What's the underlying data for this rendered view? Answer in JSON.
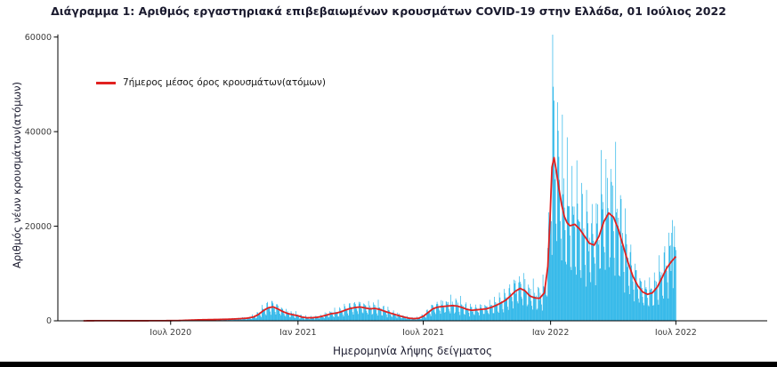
{
  "chart_data": {
    "type": "bar",
    "title": "Διάγραμμα 1: Αριθμός εργαστηριακά επιβεβαιωμένων κρουσμάτων COVID-19 στην Ελλάδα, 01 Ιούλιος 2022",
    "xlabel": "Ημερομηνία λήψης δείγματος",
    "ylabel": "Αριθμός νέων κρουσμάτων(ατόμων)",
    "legend": {
      "label": "7ήμερος μέσος όρος κρουσμάτων(ατόμων)",
      "position": "top-left",
      "marker": "line"
    },
    "bar_color": "#29b5e8",
    "line_color": "#e12120",
    "axis_color": "#000000",
    "tick_label_color": "#3c3c3c",
    "grid": "off",
    "ylim": [
      0,
      62200
    ],
    "y_ticks": [
      {
        "value": 0,
        "label": "0"
      },
      {
        "value": 20000,
        "label": "20000"
      },
      {
        "value": 40000,
        "label": "40000"
      },
      {
        "value": 60000,
        "label": "60000"
      }
    ],
    "day_zero": "2020-01-20",
    "x_domain_days": [
      0,
      1025
    ],
    "x_ticks": [
      {
        "day": 163,
        "label": "Ιουλ 2020"
      },
      {
        "day": 347,
        "label": "Ιαν 2021"
      },
      {
        "day": 528,
        "label": "Ιουλ 2021"
      },
      {
        "day": 712,
        "label": "Ιαν 2022"
      },
      {
        "day": 893,
        "label": "Ιουλ 2022"
      }
    ],
    "series_start_day": 37,
    "series_end_day": 893,
    "avg_anchors": [
      [
        37,
        3
      ],
      [
        50,
        14
      ],
      [
        64,
        24
      ],
      [
        78,
        21
      ],
      [
        92,
        15
      ],
      [
        106,
        11
      ],
      [
        120,
        12
      ],
      [
        134,
        17
      ],
      [
        148,
        25
      ],
      [
        162,
        35
      ],
      [
        176,
        55
      ],
      [
        190,
        135
      ],
      [
        204,
        205
      ],
      [
        218,
        245
      ],
      [
        232,
        285
      ],
      [
        246,
        330
      ],
      [
        260,
        420
      ],
      [
        274,
        560
      ],
      [
        283,
        820
      ],
      [
        290,
        1350
      ],
      [
        297,
        2150
      ],
      [
        304,
        2750
      ],
      [
        311,
        2950
      ],
      [
        318,
        2500
      ],
      [
        325,
        1950
      ],
      [
        332,
        1550
      ],
      [
        339,
        1300
      ],
      [
        346,
        1100
      ],
      [
        353,
        780
      ],
      [
        360,
        640
      ],
      [
        367,
        650
      ],
      [
        374,
        720
      ],
      [
        381,
        920
      ],
      [
        388,
        1200
      ],
      [
        395,
        1500
      ],
      [
        402,
        1620
      ],
      [
        409,
        1900
      ],
      [
        416,
        2300
      ],
      [
        423,
        2620
      ],
      [
        430,
        2820
      ],
      [
        437,
        2920
      ],
      [
        444,
        2720
      ],
      [
        451,
        2520
      ],
      [
        458,
        2620
      ],
      [
        465,
        2400
      ],
      [
        472,
        2020
      ],
      [
        479,
        1700
      ],
      [
        486,
        1380
      ],
      [
        493,
        1080
      ],
      [
        500,
        800
      ],
      [
        507,
        560
      ],
      [
        514,
        460
      ],
      [
        521,
        520
      ],
      [
        528,
        950
      ],
      [
        535,
        1750
      ],
      [
        542,
        2550
      ],
      [
        549,
        2900
      ],
      [
        556,
        3020
      ],
      [
        563,
        3120
      ],
      [
        570,
        3220
      ],
      [
        577,
        3120
      ],
      [
        584,
        2820
      ],
      [
        591,
        2420
      ],
      [
        598,
        2220
      ],
      [
        605,
        2320
      ],
      [
        612,
        2420
      ],
      [
        619,
        2520
      ],
      [
        626,
        2820
      ],
      [
        633,
        3250
      ],
      [
        640,
        3750
      ],
      [
        647,
        4350
      ],
      [
        654,
        5250
      ],
      [
        661,
        6250
      ],
      [
        668,
        6850
      ],
      [
        675,
        6350
      ],
      [
        682,
        5250
      ],
      [
        689,
        4850
      ],
      [
        696,
        4750
      ],
      [
        703,
        5900
      ],
      [
        708,
        11500
      ],
      [
        711,
        21000
      ],
      [
        714,
        32500
      ],
      [
        717,
        34500
      ],
      [
        720,
        32000
      ],
      [
        724,
        28000
      ],
      [
        728,
        24500
      ],
      [
        732,
        22000
      ],
      [
        736,
        20700
      ],
      [
        740,
        20100
      ],
      [
        747,
        20400
      ],
      [
        754,
        19400
      ],
      [
        761,
        17900
      ],
      [
        768,
        16400
      ],
      [
        775,
        16000
      ],
      [
        782,
        17900
      ],
      [
        789,
        21000
      ],
      [
        796,
        22800
      ],
      [
        803,
        21900
      ],
      [
        810,
        19300
      ],
      [
        817,
        15800
      ],
      [
        824,
        12300
      ],
      [
        831,
        9400
      ],
      [
        838,
        7400
      ],
      [
        845,
        6100
      ],
      [
        852,
        5600
      ],
      [
        859,
        5900
      ],
      [
        866,
        7100
      ],
      [
        873,
        9100
      ],
      [
        880,
        11200
      ],
      [
        887,
        12600
      ],
      [
        893,
        13600
      ]
    ],
    "weekday_pattern": [
      0.5,
      1.5,
      1.3,
      1.18,
      1.07,
      0.95,
      0.62
    ],
    "jitter_amp": 0.22,
    "spike_overrides": [
      [
        715,
        60500
      ],
      [
        716,
        49500
      ],
      [
        722,
        46200
      ],
      [
        729,
        43600
      ],
      [
        736,
        38800
      ],
      [
        785,
        36100
      ],
      [
        792,
        34200
      ],
      [
        887,
        18600
      ],
      [
        888,
        21300
      ]
    ]
  }
}
